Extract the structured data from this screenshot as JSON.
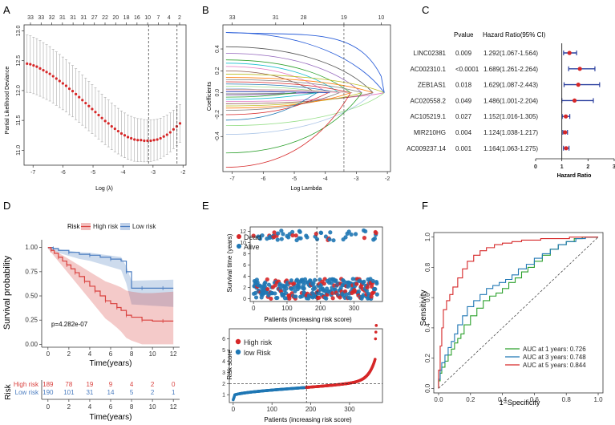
{
  "panel_labels": {
    "a": "A",
    "b": "B",
    "c": "C",
    "d": "D",
    "e": "E",
    "f": "F"
  },
  "colors": {
    "red": "#d62728",
    "blue": "#1f77b4",
    "gray": "#888888",
    "green": "#2ca02c",
    "darkblue": "#2a3f9e",
    "km_red": "#d9413e",
    "km_blue": "#4a7cc0"
  },
  "chart_data": [
    {
      "id": "A",
      "type": "line",
      "xlabel": "Log (λ)",
      "ylabel": "Partial Likelihood Deviance",
      "xlim": [
        -7.3,
        -1.9
      ],
      "ylim": [
        10.75,
        13.1
      ],
      "xticks": [
        -7,
        -6,
        -5,
        -4,
        -3,
        -2
      ],
      "yticks": [
        11.0,
        11.5,
        12.0,
        12.5,
        13.0
      ],
      "yticklabels": [
        "11.0",
        "11.5",
        "12.0",
        "12.5",
        "13.0"
      ],
      "top_ticks": [
        "33",
        "33",
        "32",
        "31",
        "31",
        "31",
        "27",
        "22",
        "20",
        "18",
        "16",
        "10",
        "7",
        "4",
        "2"
      ],
      "vlines": [
        -3.15,
        -2.2
      ],
      "series": [
        {
          "name": "deviance",
          "x_start": -7.2,
          "x_end": -2.1,
          "values": [
            12.45,
            12.44,
            12.42,
            12.4,
            12.37,
            12.34,
            12.31,
            12.28,
            12.24,
            12.2,
            12.16,
            12.12,
            12.08,
            12.03,
            11.99,
            11.94,
            11.89,
            11.84,
            11.79,
            11.74,
            11.69,
            11.64,
            11.59,
            11.54,
            11.49,
            11.45,
            11.4,
            11.36,
            11.32,
            11.28,
            11.25,
            11.22,
            11.2,
            11.18,
            11.17,
            11.17,
            11.16,
            11.16,
            11.16,
            11.17,
            11.18,
            11.2,
            11.23,
            11.26,
            11.3,
            11.35,
            11.4,
            11.45
          ],
          "err": 0.48
        }
      ]
    },
    {
      "id": "B",
      "type": "line",
      "xlabel": "Log Lambda",
      "ylabel": "Coefficients",
      "xlim": [
        -7.3,
        -1.9
      ],
      "ylim": [
        -0.72,
        0.62
      ],
      "xticks": [
        -7,
        -6,
        -5,
        -4,
        -3,
        -2
      ],
      "yticks": [
        -0.4,
        -0.2,
        0.0,
        0.2,
        0.4
      ],
      "yticklabels": [
        "-0.4",
        "-0.2",
        "0.0",
        "0.2",
        "0.4"
      ],
      "top_ticks": [
        "33",
        "31",
        "28",
        "19",
        "10"
      ],
      "top_tick_x": [
        -7,
        -5.6,
        -4.7,
        -3.4,
        -2.2
      ]
    },
    {
      "id": "C",
      "type": "forest",
      "headers": {
        "pvalue": "Pvalue",
        "hr": "Hazard Ratio(95% CI)"
      },
      "xlabel": "Hazard Ratio",
      "xlim": [
        0,
        3
      ],
      "xticks": [
        0,
        1,
        2,
        3
      ],
      "ref_line": 1,
      "rows": [
        {
          "gene": "LINC02381",
          "p": "0.009",
          "hr_text": "1.292(1.067-1.564)",
          "hr": 1.292,
          "lo": 1.067,
          "hi": 1.564
        },
        {
          "gene": "AC002310.1",
          "p": "<0.0001",
          "hr_text": "1.689(1.261-2.264)",
          "hr": 1.689,
          "lo": 1.261,
          "hi": 2.264
        },
        {
          "gene": "ZEB1AS1",
          "p": "0.018",
          "hr_text": "1.629(1.087-2.443)",
          "hr": 1.629,
          "lo": 1.087,
          "hi": 2.443
        },
        {
          "gene": "AC020558.2",
          "p": "0.049",
          "hr_text": "1.486(1.001-2.204)",
          "hr": 1.486,
          "lo": 1.001,
          "hi": 2.204
        },
        {
          "gene": "AC105219.1",
          "p": "0.027",
          "hr_text": "1.152(1.016-1.305)",
          "hr": 1.152,
          "lo": 1.016,
          "hi": 1.305
        },
        {
          "gene": "MIR210HG",
          "p": "0.004",
          "hr_text": "1.124(1.038-1.217)",
          "hr": 1.124,
          "lo": 1.038,
          "hi": 1.217
        },
        {
          "gene": "AC009237.14",
          "p": "0.001",
          "hr_text": "1.164(1.063-1.275)",
          "hr": 1.164,
          "lo": 1.063,
          "hi": 1.275
        }
      ]
    },
    {
      "id": "D",
      "type": "line",
      "legend_title": "Risk",
      "legend": [
        "High risk",
        "Low risk"
      ],
      "xlabel": "Time(years)",
      "ylabel": "Survival probability",
      "xlim": [
        -0.6,
        12.6
      ],
      "ylim": [
        -0.03,
        1.08
      ],
      "xticks": [
        0,
        2,
        4,
        6,
        8,
        10,
        12
      ],
      "yticks": [
        0,
        0.25,
        0.5,
        0.75,
        1.0
      ],
      "yticklabels": [
        "0.00",
        "0.25",
        "0.50",
        "0.75",
        "1.00"
      ],
      "pvalue": "p=4.282e-07",
      "high": {
        "t": [
          0,
          0.3,
          0.6,
          1,
          1.4,
          1.8,
          2.2,
          2.6,
          3,
          3.5,
          4,
          4.5,
          5,
          5.5,
          6,
          6.6,
          7,
          7.5,
          8,
          9,
          10,
          11,
          12
        ],
        "s": [
          1,
          0.97,
          0.94,
          0.9,
          0.86,
          0.82,
          0.78,
          0.74,
          0.7,
          0.65,
          0.6,
          0.55,
          0.5,
          0.45,
          0.42,
          0.38,
          0.35,
          0.3,
          0.28,
          0.25,
          0.24,
          0.24,
          0.24
        ]
      },
      "low": {
        "t": [
          0,
          0.5,
          1,
          2,
          3,
          4,
          5,
          6,
          7,
          7.5,
          8,
          9,
          10,
          11,
          12
        ],
        "s": [
          1,
          0.99,
          0.97,
          0.95,
          0.93,
          0.92,
          0.9,
          0.88,
          0.86,
          0.75,
          0.58,
          0.58,
          0.58,
          0.58,
          0.58
        ]
      },
      "risk_table": {
        "title": "Risk",
        "rows": [
          {
            "label": "High risk",
            "values": [
              "189",
              "78",
              "19",
              "9",
              "4",
              "2",
              "0"
            ]
          },
          {
            "label": "Low risk",
            "values": [
              "190",
              "101",
              "31",
              "14",
              "5",
              "2",
              "1"
            ]
          }
        ],
        "xlabel": "Time(years)"
      }
    },
    {
      "id": "E1",
      "type": "scatter",
      "ylabel": "Survival time (years)",
      "xlabel": "Patients (increasing risk score)",
      "xlim": [
        -10,
        385
      ],
      "ylim": [
        -0.5,
        12.8
      ],
      "xticks": [
        0,
        100,
        200,
        300
      ],
      "yticks": [
        0,
        2,
        4,
        6,
        8,
        10,
        12
      ],
      "legend": [
        "Dead",
        "Alive"
      ],
      "cutoff": 189
    },
    {
      "id": "E2",
      "type": "scatter",
      "ylabel": "Risk score",
      "xlabel": "Patients (increasing risk score)",
      "xlim": [
        -10,
        385
      ],
      "ylim": [
        0.3,
        6.9
      ],
      "xticks": [
        0,
        100,
        200,
        300
      ],
      "yticks": [
        1,
        2,
        3,
        4,
        5,
        6
      ],
      "legend": [
        "High risk",
        "low Risk"
      ],
      "cutoff": 189,
      "threshold": 1.98
    },
    {
      "id": "F",
      "type": "line",
      "xlabel": "1−Specificity",
      "ylabel": "Sensitivity",
      "xlim": [
        -0.03,
        1.03
      ],
      "ylim": [
        -0.03,
        1.03
      ],
      "xticks": [
        0.0,
        0.2,
        0.4,
        0.6,
        0.8,
        1.0
      ],
      "yticks": [
        0.0,
        0.2,
        0.4,
        0.6,
        0.8,
        1.0
      ],
      "ticklabels": [
        "0.0",
        "0.2",
        "0.4",
        "0.6",
        "0.8",
        "1.0"
      ],
      "series": [
        {
          "name": "AUC at 1 years: 0.726",
          "color": "#2ca02c",
          "x": [
            0,
            0.01,
            0.02,
            0.04,
            0.06,
            0.08,
            0.1,
            0.12,
            0.14,
            0.16,
            0.2,
            0.24,
            0.28,
            0.32,
            0.36,
            0.4,
            0.44,
            0.48,
            0.52,
            0.56,
            0.6,
            0.65,
            0.7,
            0.75,
            0.8,
            0.85,
            0.9,
            1.0
          ],
          "y": [
            0,
            0.05,
            0.1,
            0.14,
            0.18,
            0.22,
            0.26,
            0.3,
            0.33,
            0.36,
            0.42,
            0.48,
            0.53,
            0.58,
            0.61,
            0.63,
            0.66,
            0.7,
            0.73,
            0.77,
            0.8,
            0.84,
            0.88,
            0.92,
            0.95,
            0.97,
            0.99,
            1.0
          ]
        },
        {
          "name": "AUC at 3 years: 0.748",
          "color": "#1f77b4",
          "x": [
            0,
            0.01,
            0.02,
            0.04,
            0.06,
            0.08,
            0.1,
            0.12,
            0.15,
            0.18,
            0.22,
            0.26,
            0.3,
            0.34,
            0.38,
            0.42,
            0.46,
            0.5,
            0.55,
            0.6,
            0.65,
            0.7,
            0.75,
            0.8,
            0.86,
            0.92,
            1.0
          ],
          "y": [
            0,
            0.06,
            0.12,
            0.17,
            0.22,
            0.27,
            0.31,
            0.36,
            0.42,
            0.48,
            0.54,
            0.58,
            0.62,
            0.66,
            0.68,
            0.7,
            0.72,
            0.75,
            0.79,
            0.82,
            0.86,
            0.89,
            0.92,
            0.95,
            0.97,
            0.99,
            1.0
          ]
        },
        {
          "name": "AUC at 5 years: 0.844",
          "color": "#d62728",
          "x": [
            0,
            0.01,
            0.02,
            0.03,
            0.05,
            0.07,
            0.09,
            0.12,
            0.15,
            0.18,
            0.22,
            0.26,
            0.3,
            0.35,
            0.4,
            0.46,
            0.52,
            0.58,
            0.64,
            0.7,
            0.76,
            0.82,
            0.88,
            0.94,
            1.0
          ],
          "y": [
            0,
            0.12,
            0.28,
            0.4,
            0.52,
            0.58,
            0.62,
            0.67,
            0.73,
            0.79,
            0.84,
            0.88,
            0.91,
            0.93,
            0.95,
            0.96,
            0.97,
            0.98,
            0.98,
            0.99,
            0.99,
            0.99,
            1.0,
            1.0,
            1.0
          ]
        }
      ]
    }
  ]
}
